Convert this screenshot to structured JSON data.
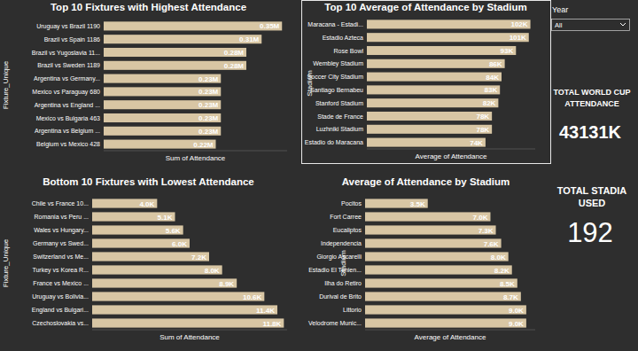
{
  "chart_data": [
    {
      "type": "bar",
      "orientation": "horizontal",
      "title": "Top 10 Fixtures with Highest Attendance",
      "xlabel": "Sum of Attendance",
      "ylabel": "Fixture_Unique",
      "categories": [
        "Uruguay vs Brazil 1190",
        "Brazil vs Spain 1186",
        "Brazil vs Yugoslavia 11...",
        "Brazil vs Sweden 1189",
        "Argentina vs Germany...",
        "Mexico vs Paraguay 680",
        "Argentina vs England ...",
        "Mexico vs Bulgaria 463",
        "Argentina vs Belgium ...",
        "Belgium vs Mexico 428"
      ],
      "values": [
        350000,
        310000,
        280000,
        280000,
        230000,
        230000,
        230000,
        230000,
        230000,
        220000
      ],
      "value_labels": [
        "0.35M",
        "0.31M",
        "0.28M",
        "0.28M",
        "0.23M",
        "0.23M",
        "0.23M",
        "0.23M",
        "0.23M",
        "0.22M"
      ],
      "xlim": [
        0,
        360000
      ],
      "color": "#d8c6a4",
      "data_labels": true,
      "tick_labels": "y",
      "grid": false
    },
    {
      "type": "bar",
      "orientation": "horizontal",
      "title": "Top 10 Average of Attendance by Stadium",
      "xlabel": "Average of Attendance",
      "ylabel": "Stadium",
      "categories": [
        "Maracana - Estadi...",
        "Estadio Azteca",
        "Rose Bowl",
        "Wembley Stadium",
        "Soccer City Stadium",
        "Santiago Bernabeu",
        "Stanford Stadium",
        "Stade de France",
        "Luzhniki Stadium",
        "Estadio do Maracana"
      ],
      "values": [
        102000,
        101000,
        93000,
        86000,
        84000,
        83000,
        82000,
        78000,
        78000,
        74000
      ],
      "value_labels": [
        "102K",
        "101K",
        "93K",
        "86K",
        "84K",
        "83K",
        "82K",
        "78K",
        "78K",
        "74K"
      ],
      "xlim": [
        0,
        105000
      ],
      "color": "#d8c6a4",
      "data_labels": true,
      "tick_labels": "y",
      "grid": false
    },
    {
      "type": "bar",
      "orientation": "horizontal",
      "title": "Bottom 10 Fixtures with Lowest Attendance",
      "xlabel": "Sum of Attendance",
      "ylabel": "Fixture_Unique",
      "categories": [
        "Chile vs France 10...",
        "Romania vs Peru ...",
        "Wales vs Hungary...",
        "Germany vs Swed...",
        "Switzerland vs Me...",
        "Turkey vs Korea R...",
        "France vs Mexico ...",
        "Uruguay vs Bolivia...",
        "England vs Bulgari...",
        "Czechoslovakia vs..."
      ],
      "values": [
        4000,
        5100,
        5600,
        6000,
        7200,
        8000,
        8900,
        10600,
        11400,
        11800
      ],
      "value_labels": [
        "4.0K",
        "5.1K",
        "5.6K",
        "6.0K",
        "7.2K",
        "8.0K",
        "8.9K",
        "10.6K",
        "11.4K",
        "11.8K"
      ],
      "xlim": [
        0,
        12000
      ],
      "color": "#d8c6a4",
      "data_labels": true,
      "tick_labels": "y",
      "grid": false
    },
    {
      "type": "bar",
      "orientation": "horizontal",
      "title": "Average of Attendance by Stadium",
      "xlabel": "Average of Attendance",
      "ylabel": "Stadium",
      "categories": [
        "Pocitos",
        "Fort Carree",
        "Eucaliptos",
        "Independencia",
        "Giorgio Ascarelli",
        "Estadio El Tenien...",
        "Ilha do Retiro",
        "Durival de Brito",
        "Littorio",
        "Velodrome Munic..."
      ],
      "values": [
        3500,
        7000,
        7300,
        7600,
        8000,
        8200,
        8500,
        8700,
        9000,
        9000
      ],
      "value_labels": [
        "3.5K",
        "7.0K",
        "7.3K",
        "7.6K",
        "8.0K",
        "8.2K",
        "8.5K",
        "8.7K",
        "9.0K",
        "9.0K"
      ],
      "xlim": [
        0,
        9500
      ],
      "color": "#d8c6a4",
      "data_labels": true,
      "tick_labels": "y",
      "grid": false
    }
  ],
  "filter": {
    "label": "Year",
    "value": "All"
  },
  "cards": [
    {
      "title": "TOTAL WORLD CUP ATTENDANCE",
      "value": "43131K"
    },
    {
      "title": "TOTAL STADIA USED",
      "value": 192
    }
  ]
}
